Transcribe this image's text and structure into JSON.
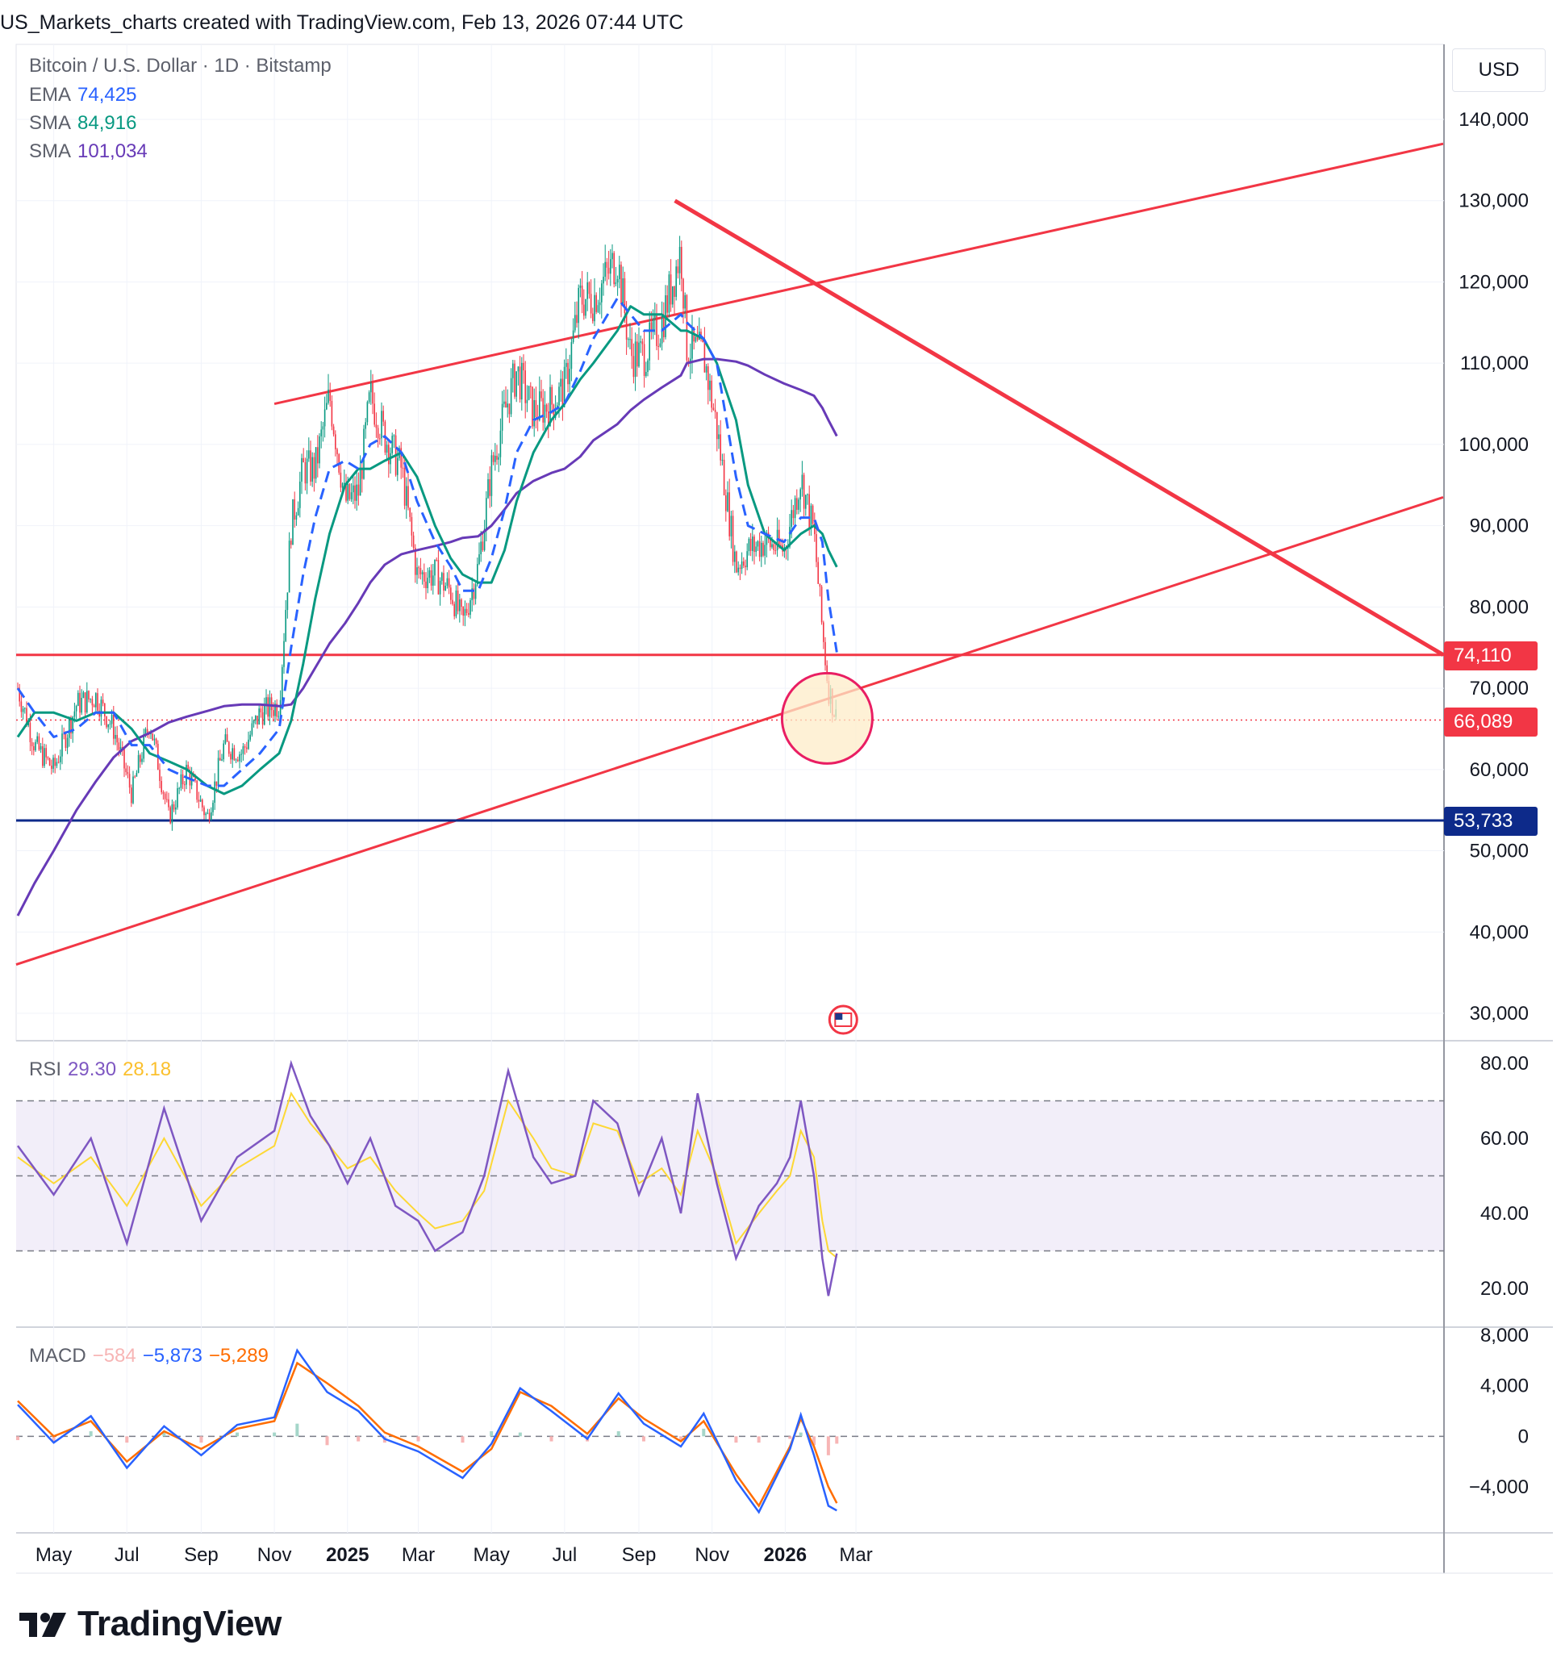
{
  "header": "US_Markets_charts created with TradingView.com, Feb 13, 2026 07:44 UTC",
  "legend": {
    "symbol": "Bitcoin / U.S. Dollar · 1D · Bitstamp",
    "ema_label": "EMA",
    "ema_value": "74,425",
    "sma50_label": "SMA",
    "sma50_value": "84,916",
    "sma200_label": "SMA",
    "sma200_value": "101,034"
  },
  "currency": "USD",
  "colors": {
    "ema": "#2962ff",
    "sma50": "#089981",
    "sma200": "#673ab7",
    "trendline": "#f23645",
    "support": "#0d2a8a",
    "rsi": "#7e57c2",
    "rsi_ma": "#fdd835",
    "macd": "#2962ff",
    "signal": "#ff6d00",
    "up": "#089981",
    "down": "#f23645"
  },
  "badges": {
    "resistance": "74,110",
    "price": "66,089",
    "support": "53,733"
  },
  "rsi": {
    "label": "RSI",
    "value": "29.30",
    "ma_value": "28.18"
  },
  "macd": {
    "label": "MACD",
    "hist_value": "−584",
    "macd_value": "−5,873",
    "signal_value": "−5,289"
  },
  "logo": "TradingView",
  "chart_data": [
    {
      "type": "line",
      "title": "Bitcoin / U.S. Dollar · 1D · Bitstamp",
      "price_axis_ticks": [
        "140,000",
        "130,000",
        "120,000",
        "110,000",
        "100,000",
        "90,000",
        "80,000",
        "70,000",
        "60,000",
        "50,000",
        "40,000",
        "30,000"
      ],
      "ylim": [
        27000,
        146000
      ],
      "time_axis_ticks": [
        "May",
        "Jul",
        "Sep",
        "Nov",
        "2025",
        "Mar",
        "May",
        "Jul",
        "Sep",
        "Nov",
        "2026",
        "Mar"
      ],
      "x_dates": [
        "2024-04-01",
        "2024-04-15",
        "2024-05-01",
        "2024-05-20",
        "2024-06-05",
        "2024-06-20",
        "2024-07-05",
        "2024-07-20",
        "2024-08-05",
        "2024-08-20",
        "2024-09-06",
        "2024-09-20",
        "2024-10-05",
        "2024-10-20",
        "2024-11-05",
        "2024-11-15",
        "2024-11-25",
        "2024-12-05",
        "2024-12-17",
        "2024-12-30",
        "2025-01-10",
        "2025-01-20",
        "2025-02-01",
        "2025-02-15",
        "2025-02-28",
        "2025-03-15",
        "2025-03-28",
        "2025-04-07",
        "2025-04-20",
        "2025-05-01",
        "2025-05-12",
        "2025-05-22",
        "2025-06-05",
        "2025-06-20",
        "2025-07-01",
        "2025-07-14",
        "2025-07-25",
        "2025-08-14",
        "2025-08-25",
        "2025-09-05",
        "2025-09-20",
        "2025-10-06",
        "2025-10-11",
        "2025-10-25",
        "2025-11-05",
        "2025-11-21",
        "2025-12-01",
        "2025-12-15",
        "2025-12-31",
        "2026-01-14",
        "2026-01-25",
        "2026-02-01",
        "2026-02-06",
        "2026-02-13"
      ],
      "series": [
        {
          "name": "BTC/USD close",
          "values": [
            70000,
            63000,
            60000,
            68000,
            69000,
            65000,
            57000,
            66000,
            54000,
            60000,
            54000,
            63000,
            62000,
            67000,
            68000,
            90000,
            97000,
            97000,
            106000,
            93000,
            94000,
            106000,
            101000,
            97000,
            84000,
            84000,
            82000,
            78000,
            85000,
            97000,
            104000,
            109000,
            104000,
            105000,
            107000,
            118000,
            118000,
            123000,
            111000,
            111000,
            115000,
            124000,
            112000,
            111000,
            102000,
            85000,
            87000,
            88000,
            87000,
            96000,
            89000,
            77000,
            70000,
            66089
          ]
        },
        {
          "name": "EMA",
          "values": [
            70000,
            67000,
            64000,
            65000,
            67000,
            67000,
            63000,
            63000,
            60000,
            59000,
            58000,
            58000,
            60000,
            62000,
            65000,
            75000,
            84000,
            91000,
            97000,
            98000,
            97000,
            100000,
            101000,
            99000,
            93000,
            88000,
            85000,
            82000,
            82000,
            86000,
            92000,
            99000,
            103000,
            104000,
            105000,
            109000,
            113000,
            118000,
            116000,
            114000,
            114000,
            116000,
            115000,
            113000,
            110000,
            96000,
            90000,
            89000,
            88000,
            91000,
            91000,
            88000,
            81000,
            74425
          ]
        },
        {
          "name": "SMA",
          "values": [
            64000,
            67000,
            67000,
            66000,
            67000,
            67000,
            65000,
            62000,
            61000,
            60000,
            58000,
            57000,
            58000,
            60000,
            62000,
            66000,
            73000,
            81000,
            89000,
            95000,
            97000,
            97000,
            98000,
            99000,
            96000,
            90000,
            86000,
            84000,
            83000,
            83000,
            87000,
            93000,
            99000,
            103000,
            105000,
            108000,
            110000,
            114000,
            117000,
            116000,
            116000,
            114000,
            114000,
            113000,
            110000,
            103000,
            95000,
            89000,
            87000,
            89000,
            90000,
            89000,
            87000,
            84916
          ]
        },
        {
          "name": "SMA",
          "values": [
            42000,
            46000,
            50000,
            55000,
            58500,
            61500,
            63500,
            64500,
            65800,
            66500,
            67200,
            67800,
            68000,
            68000,
            67800,
            68000,
            70000,
            72500,
            75500,
            78000,
            80500,
            83000,
            85200,
            86500,
            87000,
            87500,
            88000,
            88500,
            88700,
            90000,
            92000,
            94000,
            95500,
            96500,
            97000,
            98500,
            100500,
            102500,
            104200,
            105500,
            107000,
            108500,
            110000,
            110500,
            110500,
            110200,
            109700,
            108600,
            107500,
            106700,
            106000,
            104500,
            103000,
            101034
          ]
        }
      ],
      "annotations": [
        "74,110 horizontal resistance",
        "53,733 horizontal support",
        "ascending channel trendlines",
        "descending trendline",
        "highlighted circle around current price"
      ]
    },
    {
      "type": "line",
      "title": "RSI",
      "yticks": [
        "80.00",
        "60.00",
        "40.00",
        "20.00"
      ],
      "ylim": [
        12,
        84
      ],
      "bands": [
        30,
        50,
        70
      ],
      "x_dates": [
        "2024-04-01",
        "2024-05-01",
        "2024-06-01",
        "2024-07-01",
        "2024-08-01",
        "2024-09-01",
        "2024-10-01",
        "2024-11-01",
        "2024-11-15",
        "2024-12-01",
        "2024-12-17",
        "2025-01-01",
        "2025-01-20",
        "2025-02-10",
        "2025-03-01",
        "2025-03-15",
        "2025-04-07",
        "2025-04-25",
        "2025-05-15",
        "2025-06-05",
        "2025-06-20",
        "2025-07-10",
        "2025-07-25",
        "2025-08-14",
        "2025-09-01",
        "2025-09-20",
        "2025-10-06",
        "2025-10-20",
        "2025-11-05",
        "2025-11-21",
        "2025-12-10",
        "2025-12-25",
        "2026-01-05",
        "2026-01-14",
        "2026-01-25",
        "2026-02-01",
        "2026-02-06",
        "2026-02-13"
      ],
      "series": [
        {
          "name": "RSI",
          "values": [
            58,
            45,
            60,
            32,
            68,
            38,
            55,
            62,
            80,
            66,
            58,
            48,
            60,
            42,
            38,
            30,
            35,
            50,
            78,
            55,
            48,
            50,
            70,
            64,
            45,
            60,
            40,
            72,
            48,
            28,
            42,
            48,
            55,
            70,
            50,
            28,
            18,
            29.3
          ]
        },
        {
          "name": "RSI MA",
          "values": [
            55,
            48,
            55,
            42,
            60,
            42,
            52,
            58,
            72,
            64,
            58,
            52,
            55,
            46,
            40,
            36,
            38,
            46,
            70,
            60,
            52,
            50,
            64,
            62,
            48,
            52,
            45,
            62,
            50,
            32,
            40,
            46,
            50,
            62,
            55,
            38,
            30,
            28.18
          ]
        }
      ]
    },
    {
      "type": "bar",
      "title": "MACD",
      "yticks": [
        "8,000",
        "4,000",
        "0",
        "−4,000"
      ],
      "ylim": [
        -7600,
        8300
      ],
      "x_dates": [
        "2024-04-01",
        "2024-05-01",
        "2024-06-01",
        "2024-07-01",
        "2024-08-01",
        "2024-09-01",
        "2024-10-01",
        "2024-11-01",
        "2024-11-20",
        "2024-12-15",
        "2025-01-10",
        "2025-02-01",
        "2025-03-01",
        "2025-04-07",
        "2025-05-01",
        "2025-05-25",
        "2025-06-20",
        "2025-07-20",
        "2025-08-15",
        "2025-09-05",
        "2025-10-06",
        "2025-10-25",
        "2025-11-21",
        "2025-12-10",
        "2026-01-05",
        "2026-01-14",
        "2026-01-25",
        "2026-02-06",
        "2026-02-13"
      ],
      "series": [
        {
          "name": "MACD",
          "values": [
            2500,
            -500,
            1600,
            -2500,
            800,
            -1500,
            900,
            1500,
            6800,
            3500,
            2000,
            -200,
            -1200,
            -3300,
            -600,
            3800,
            2000,
            -200,
            3400,
            1000,
            -800,
            1800,
            -3500,
            -6000,
            -1000,
            1700,
            -1500,
            -5500,
            -5873
          ]
        },
        {
          "name": "Signal",
          "values": [
            2800,
            0,
            1200,
            -2000,
            400,
            -1000,
            600,
            1200,
            5800,
            4200,
            2400,
            300,
            -800,
            -2800,
            -1000,
            3500,
            2400,
            200,
            3000,
            1400,
            -400,
            1200,
            -3000,
            -5500,
            -800,
            1400,
            -800,
            -4000,
            -5289
          ]
        },
        {
          "name": "Histogram",
          "values": [
            -300,
            -500,
            400,
            -500,
            400,
            -500,
            300,
            300,
            1000,
            -700,
            -400,
            -500,
            -400,
            -500,
            400,
            300,
            -400,
            -400,
            400,
            -400,
            -400,
            600,
            -500,
            -500,
            -200,
            300,
            -700,
            -1500,
            -584
          ]
        }
      ]
    }
  ]
}
